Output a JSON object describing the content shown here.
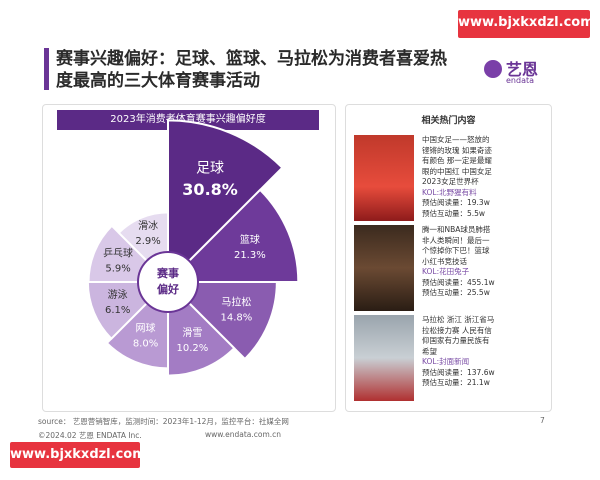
{
  "watermark_top": "www.bjxkxdzl.com",
  "watermark_bottom": "www.bjxkxdzl.com",
  "header": {
    "title_lines": [
      "赛事兴趣偏好：足球、篮球、马拉松为消费者喜爱热",
      "度最高的三大体育赛事活动"
    ],
    "logo": "艺恩",
    "logo_sub": "endata"
  },
  "chart_data": {
    "type": "rose",
    "title": "2023年消费者体育赛事兴趣偏好度",
    "center_label_lines": [
      "赛事",
      "偏好"
    ],
    "categories": [
      "足球",
      "篮球",
      "马拉松",
      "滑雪",
      "网球",
      "游泳",
      "乒乓球",
      "滑冰"
    ],
    "values": [
      30.8,
      21.3,
      14.8,
      10.2,
      8.0,
      6.1,
      5.9,
      2.9
    ],
    "value_labels": [
      "30.8%",
      "21.3%",
      "14.8%",
      "10.2%",
      "8.0%",
      "6.1%",
      "5.9%",
      "2.9%"
    ],
    "colors": [
      "#5b2a86",
      "#6e3a9a",
      "#8a5cb0",
      "#a37cc4",
      "#b99ad3",
      "#cbb5df",
      "#d9c8e8",
      "#e6dcf0"
    ]
  },
  "related": {
    "title": "相关热门内容",
    "items": [
      {
        "lines": [
          "中国女足——怒放的",
          "铿锵的玫瑰 如果奇迹",
          "有颜色 那一定是最耀",
          "眼的中国红 中国女足",
          "2023女足世界杯"
        ],
        "kol": "KOL:北野猩有料",
        "read": "预估阅读量：19.3w",
        "interact": "预估互动量：5.5w"
      },
      {
        "lines": [
          "腾一和NBA球员肺搭",
          "非人类瞬间！最后一",
          "个惊掉你下巴！篮球",
          "小红书竞技话"
        ],
        "kol": "KOL:花田兔子",
        "read": "预估阅读量：455.1w",
        "interact": "预估互动量：25.5w"
      },
      {
        "lines": [
          "马拉松 浙江 浙江省马",
          "拉松接力赛 人民有信",
          "仰国家有力量民族有",
          "希望"
        ],
        "kol": "KOL:封面新闻",
        "read": "预估阅读量：137.6w",
        "interact": "预估互动量：21.1w"
      }
    ]
  },
  "footer": {
    "source": "source： 艺恩营销智库，监测时间：2023年1-12月，监控平台：社媒全网",
    "copyright": "©2024.02 艺恩 ENDATA Inc.",
    "site": "www.endata.com.cn",
    "page": "7"
  }
}
